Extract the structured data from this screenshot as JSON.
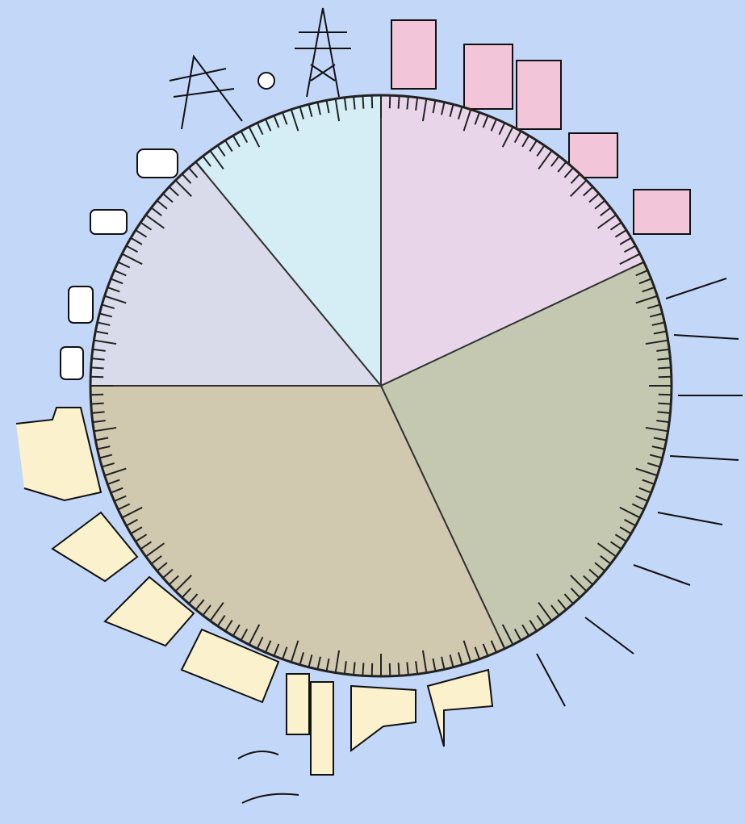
{
  "chart_data": {
    "type": "pie",
    "categories": [
      null,
      null,
      null,
      null,
      null
    ],
    "values": [
      18,
      25,
      32,
      14,
      11
    ],
    "colors": [
      "#e9d5ea",
      "#c5c8b0",
      "#d0c9b0",
      "#d9dbea",
      "#d5edf5"
    ]
  }
}
